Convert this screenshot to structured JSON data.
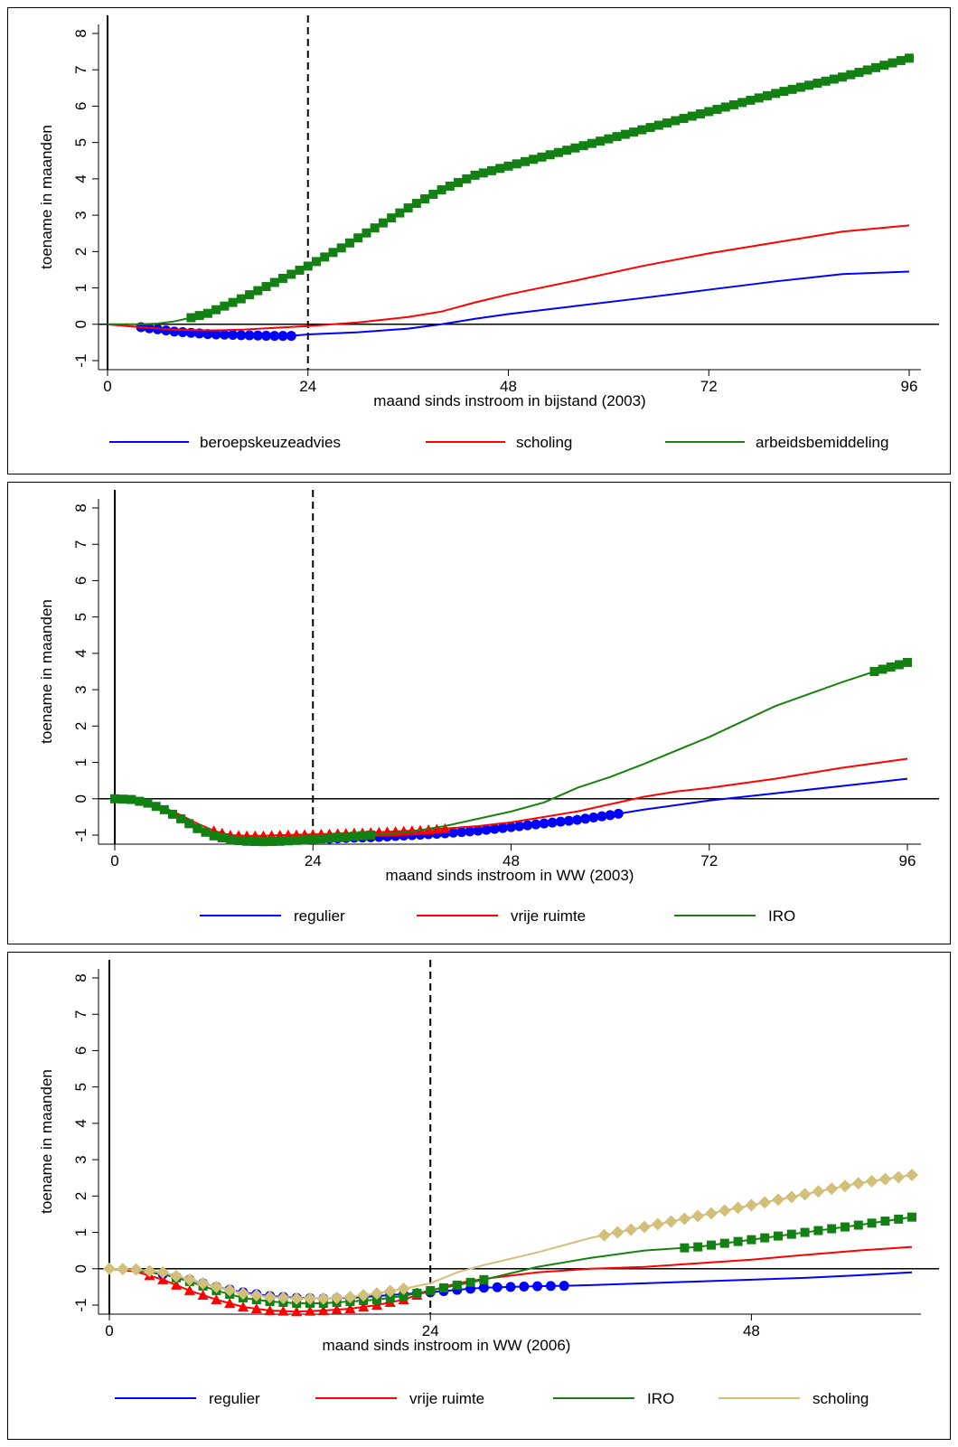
{
  "colors": {
    "blue": "#0000ff",
    "red": "#ff0000",
    "green": "#1a8010",
    "green_marker": "#138013",
    "tan": "#d2bf7a"
  },
  "chart_data": [
    {
      "type": "line",
      "xlabel": "maand sinds instroom in bijstand (2003)",
      "ylabel": "toename in maanden",
      "xlim": [
        0,
        96
      ],
      "ylim": [
        -1,
        8
      ],
      "xticks": [
        "0",
        "24",
        "48",
        "72",
        "96"
      ],
      "yticks": [
        "-1",
        "0",
        "1",
        "2",
        "3",
        "4",
        "5",
        "6",
        "7",
        "8"
      ],
      "reference_lines": {
        "horizontal": 0,
        "vertical_solid": 0,
        "vertical_dashed": 24
      },
      "legend": "bottom",
      "series": [
        {
          "name": "beroepskeuzeadvies",
          "color": "blue",
          "marker": "circle",
          "x": [
            0,
            4,
            8,
            12,
            16,
            20,
            22,
            24,
            30,
            36,
            40,
            44,
            48,
            56,
            64,
            72,
            80,
            88,
            96
          ],
          "y": [
            0,
            -0.08,
            -0.2,
            -0.27,
            -0.3,
            -0.32,
            -0.32,
            -0.28,
            -0.22,
            -0.12,
            0.0,
            0.15,
            0.28,
            0.5,
            0.72,
            0.95,
            1.18,
            1.38,
            1.45
          ],
          "marker_range": [
            4,
            22
          ]
        },
        {
          "name": "scholing",
          "color": "red",
          "marker": "none",
          "x": [
            0,
            4,
            8,
            12,
            16,
            20,
            24,
            30,
            36,
            40,
            44,
            48,
            56,
            64,
            72,
            80,
            88,
            96
          ],
          "y": [
            0,
            -0.08,
            -0.15,
            -0.17,
            -0.15,
            -0.1,
            -0.05,
            0.05,
            0.2,
            0.35,
            0.6,
            0.82,
            1.2,
            1.6,
            1.95,
            2.25,
            2.55,
            2.72
          ],
          "marker_range": null
        },
        {
          "name": "arbeidsbemiddeling",
          "color": "green",
          "marker": "square",
          "x": [
            0,
            4,
            6,
            8,
            10,
            12,
            16,
            20,
            24,
            28,
            32,
            36,
            40,
            44,
            48,
            56,
            64,
            72,
            80,
            88,
            96
          ],
          "y": [
            0,
            0,
            0.02,
            0.08,
            0.18,
            0.3,
            0.7,
            1.15,
            1.6,
            2.1,
            2.65,
            3.2,
            3.7,
            4.1,
            4.35,
            4.85,
            5.35,
            5.85,
            6.35,
            6.8,
            7.32
          ],
          "marker_range": [
            10,
            96
          ]
        }
      ]
    },
    {
      "type": "line",
      "xlabel": "maand sinds instroom in WW (2003)",
      "ylabel": "toename in maanden",
      "xlim": [
        0,
        96
      ],
      "ylim": [
        -1,
        8
      ],
      "xticks": [
        "0",
        "24",
        "48",
        "72",
        "96"
      ],
      "yticks": [
        "-1",
        "0",
        "1",
        "2",
        "3",
        "4",
        "5",
        "6",
        "7",
        "8"
      ],
      "reference_lines": {
        "horizontal": 0,
        "vertical_solid": 0,
        "vertical_dashed": 24
      },
      "legend": "bottom",
      "series": [
        {
          "name": "regulier",
          "color": "blue",
          "marker": "circle",
          "x": [
            0,
            2,
            4,
            6,
            8,
            10,
            12,
            14,
            16,
            18,
            20,
            24,
            28,
            32,
            36,
            40,
            44,
            48,
            52,
            56,
            60,
            64,
            72,
            80,
            88,
            96
          ],
          "y": [
            0,
            -0.02,
            -0.1,
            -0.25,
            -0.5,
            -0.75,
            -0.95,
            -1.08,
            -1.13,
            -1.15,
            -1.15,
            -1.12,
            -1.08,
            -1.05,
            -1.0,
            -0.95,
            -0.88,
            -0.78,
            -0.68,
            -0.58,
            -0.45,
            -0.3,
            -0.05,
            0.15,
            0.35,
            0.55
          ],
          "marker_range": [
            26,
            61
          ]
        },
        {
          "name": "vrije ruimte",
          "color": "red",
          "marker": "triangle",
          "x": [
            0,
            2,
            4,
            6,
            8,
            10,
            12,
            14,
            16,
            18,
            20,
            24,
            28,
            32,
            36,
            40,
            44,
            48,
            52,
            56,
            60,
            64,
            68,
            72,
            80,
            88,
            96
          ],
          "y": [
            0,
            -0.02,
            -0.1,
            -0.25,
            -0.45,
            -0.68,
            -0.88,
            -1.0,
            -1.02,
            -1.02,
            -1.0,
            -0.98,
            -0.95,
            -0.92,
            -0.88,
            -0.82,
            -0.75,
            -0.65,
            -0.5,
            -0.35,
            -0.15,
            0.05,
            0.2,
            0.3,
            0.55,
            0.85,
            1.1
          ],
          "marker_range": [
            12,
            40
          ]
        },
        {
          "name": "IRO",
          "color": "green",
          "marker": "square",
          "x": [
            0,
            2,
            4,
            6,
            8,
            10,
            12,
            14,
            16,
            18,
            20,
            24,
            28,
            32,
            36,
            40,
            44,
            48,
            52,
            56,
            60,
            64,
            72,
            80,
            88,
            92,
            96
          ],
          "y": [
            0,
            -0.02,
            -0.12,
            -0.3,
            -0.55,
            -0.82,
            -1.02,
            -1.13,
            -1.17,
            -1.18,
            -1.17,
            -1.12,
            -1.05,
            -0.98,
            -0.9,
            -0.75,
            -0.55,
            -0.35,
            -0.1,
            0.3,
            0.6,
            0.95,
            1.7,
            2.55,
            3.2,
            3.5,
            3.75
          ],
          "marker_range": [
            [
              0,
              31
            ],
            [
              92,
              96
            ]
          ]
        }
      ]
    },
    {
      "type": "line",
      "xlabel": "maand sinds instroom in WW (2006)",
      "ylabel": "toename in maanden",
      "xlim": [
        0,
        60
      ],
      "ylim": [
        -1,
        8
      ],
      "xticks": [
        "0",
        "24",
        "48"
      ],
      "yticks": [
        "-1",
        "0",
        "1",
        "2",
        "3",
        "4",
        "5",
        "6",
        "7",
        "8"
      ],
      "reference_lines": {
        "horizontal": 0,
        "vertical_solid": 0,
        "vertical_dashed": 24
      },
      "legend": "bottom",
      "series": [
        {
          "name": "regulier",
          "color": "blue",
          "marker": "circle",
          "x": [
            0,
            2,
            4,
            6,
            8,
            10,
            12,
            14,
            16,
            18,
            20,
            22,
            24,
            26,
            28,
            30,
            32,
            34,
            36,
            40,
            44,
            48,
            52,
            56,
            60
          ],
          "y": [
            0,
            -0.05,
            -0.15,
            -0.3,
            -0.5,
            -0.65,
            -0.75,
            -0.8,
            -0.82,
            -0.8,
            -0.75,
            -0.7,
            -0.65,
            -0.58,
            -0.52,
            -0.5,
            -0.48,
            -0.47,
            -0.45,
            -0.4,
            -0.35,
            -0.3,
            -0.25,
            -0.18,
            -0.1
          ],
          "marker_range": [
            4,
            34
          ]
        },
        {
          "name": "vrije ruimte",
          "color": "red",
          "marker": "triangle",
          "x": [
            0,
            2,
            4,
            6,
            8,
            10,
            12,
            14,
            16,
            18,
            20,
            22,
            24,
            26,
            28,
            32,
            36,
            40,
            44,
            48,
            52,
            56,
            60
          ],
          "y": [
            0,
            -0.08,
            -0.3,
            -0.6,
            -0.85,
            -1.05,
            -1.15,
            -1.18,
            -1.15,
            -1.1,
            -1.0,
            -0.85,
            -0.6,
            -0.4,
            -0.28,
            -0.1,
            0.0,
            0.05,
            0.15,
            0.25,
            0.38,
            0.5,
            0.6
          ],
          "marker_range": [
            3,
            23
          ]
        },
        {
          "name": "IRO",
          "color": "green",
          "marker": "square",
          "x": [
            0,
            2,
            4,
            6,
            8,
            10,
            12,
            14,
            16,
            18,
            20,
            22,
            24,
            26,
            28,
            32,
            36,
            40,
            44,
            48,
            52,
            56,
            60
          ],
          "y": [
            0,
            -0.05,
            -0.15,
            -0.35,
            -0.6,
            -0.8,
            -0.9,
            -0.95,
            -0.95,
            -0.9,
            -0.85,
            -0.75,
            -0.6,
            -0.45,
            -0.3,
            0.05,
            0.3,
            0.5,
            0.6,
            0.8,
            1.0,
            1.2,
            1.42
          ],
          "marker_range": [
            [
              5,
              28
            ],
            [
              43,
              60
            ]
          ]
        },
        {
          "name": "scholing",
          "color": "tan",
          "marker": "diamond",
          "x": [
            0,
            2,
            4,
            6,
            8,
            10,
            12,
            14,
            16,
            18,
            20,
            22,
            24,
            26,
            28,
            32,
            36,
            40,
            44,
            48,
            52,
            56,
            60
          ],
          "y": [
            0,
            -0.02,
            -0.1,
            -0.3,
            -0.5,
            -0.68,
            -0.78,
            -0.82,
            -0.82,
            -0.78,
            -0.68,
            -0.55,
            -0.4,
            -0.1,
            0.1,
            0.45,
            0.85,
            1.15,
            1.45,
            1.75,
            2.05,
            2.35,
            2.58
          ],
          "marker_range": [
            [
              0,
              22
            ],
            [
              37,
              60
            ]
          ]
        }
      ]
    }
  ]
}
